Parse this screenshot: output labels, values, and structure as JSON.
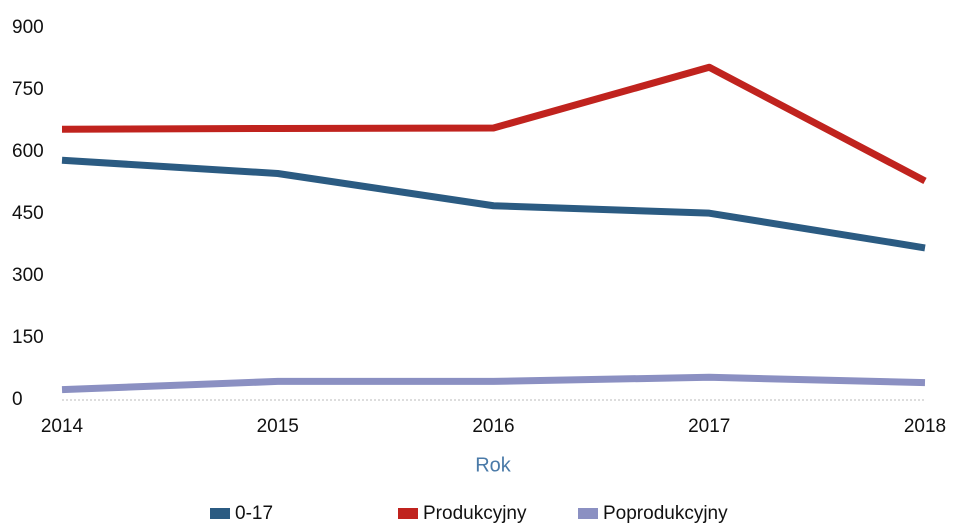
{
  "chart_data": {
    "type": "line",
    "categories": [
      "2014",
      "2015",
      "2016",
      "2017",
      "2018"
    ],
    "x_label": "Rok",
    "series": [
      {
        "name": "0-17",
        "color": "#2b5b82",
        "values": [
          580,
          548,
          470,
          452,
          368
        ]
      },
      {
        "name": "Produkcyjny",
        "color": "#c0231e",
        "values": [
          655,
          657,
          658,
          805,
          530
        ]
      },
      {
        "name": "Poprodukcyjny",
        "color": "#8b90c2",
        "values": [
          25,
          45,
          45,
          55,
          42
        ]
      }
    ],
    "ylim": [
      0,
      900
    ],
    "yticks": [
      0,
      150,
      300,
      450,
      600,
      750,
      900
    ],
    "grid": false
  }
}
